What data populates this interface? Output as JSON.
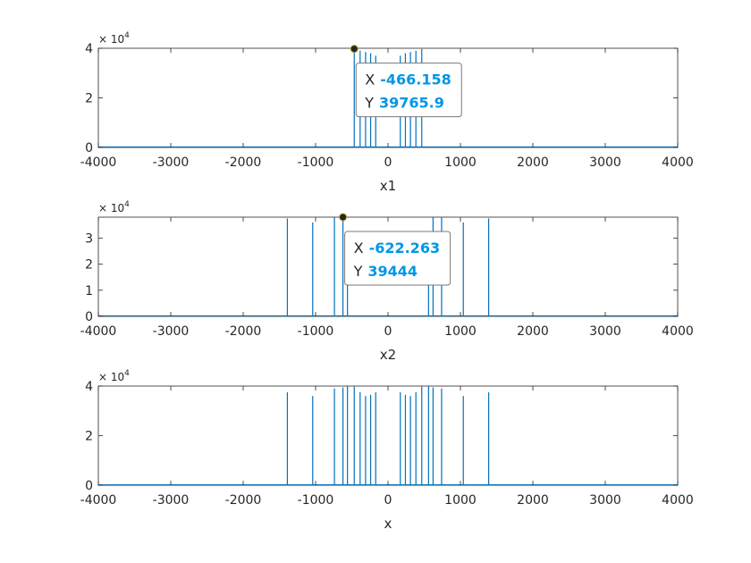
{
  "colors": {
    "series": "#0072bd",
    "axis": "#262626",
    "datatip_value": "#0096e6",
    "background": "#ffffff"
  },
  "chart_data": [
    {
      "type": "line",
      "xlabel": "x1",
      "ylabel": "",
      "xlim": [
        -4000,
        4000
      ],
      "ylim": [
        0,
        40000
      ],
      "y_exponent_label": "× 10",
      "y_exponent": "4",
      "xticks": [
        "-4000",
        "-3000",
        "-2000",
        "-1000",
        "0",
        "1000",
        "2000",
        "3000",
        "4000"
      ],
      "yticks": [
        {
          "value": 0,
          "label": "0"
        },
        {
          "value": 20000,
          "label": "2"
        },
        {
          "value": 40000,
          "label": "4"
        }
      ],
      "spikes": [
        {
          "x": -466.158,
          "y": 39765.9
        },
        {
          "x": -385,
          "y": 39000
        },
        {
          "x": -310,
          "y": 38500
        },
        {
          "x": -240,
          "y": 38000
        },
        {
          "x": -170,
          "y": 37000
        },
        {
          "x": 170,
          "y": 37000
        },
        {
          "x": 240,
          "y": 38000
        },
        {
          "x": 310,
          "y": 38500
        },
        {
          "x": 385,
          "y": 39000
        },
        {
          "x": 466,
          "y": 39700
        }
      ],
      "datatip": {
        "x_key": "X",
        "x_value": "-466.158",
        "y_key": "Y",
        "y_value": "39765.9"
      }
    },
    {
      "type": "line",
      "xlabel": "x2",
      "ylabel": "",
      "xlim": [
        -4000,
        4000
      ],
      "ylim": [
        0,
        38000
      ],
      "y_exponent_label": "× 10",
      "y_exponent": "4",
      "xticks": [
        "-4000",
        "-3000",
        "-2000",
        "-1000",
        "0",
        "1000",
        "2000",
        "3000",
        "4000"
      ],
      "yticks": [
        {
          "value": 0,
          "label": "0"
        },
        {
          "value": 10000,
          "label": "1"
        },
        {
          "value": 20000,
          "label": "2"
        },
        {
          "value": 30000,
          "label": "3"
        }
      ],
      "spikes": [
        {
          "x": -1390,
          "y": 37500
        },
        {
          "x": -1040,
          "y": 36000
        },
        {
          "x": -740,
          "y": 38500
        },
        {
          "x": -622.263,
          "y": 39444
        },
        {
          "x": -560,
          "y": 20000
        },
        {
          "x": 560,
          "y": 20000
        },
        {
          "x": 622,
          "y": 39400
        },
        {
          "x": 740,
          "y": 38500
        },
        {
          "x": 1040,
          "y": 36000
        },
        {
          "x": 1390,
          "y": 37500
        }
      ],
      "datatip": {
        "x_key": "X",
        "x_value": "-622.263",
        "y_key": "Y",
        "y_value": "39444"
      }
    },
    {
      "type": "line",
      "xlabel": "x",
      "ylabel": "",
      "xlim": [
        -4000,
        4000
      ],
      "ylim": [
        0,
        40000
      ],
      "y_exponent_label": "× 10",
      "y_exponent": "4",
      "xticks": [
        "-4000",
        "-3000",
        "-2000",
        "-1000",
        "0",
        "1000",
        "2000",
        "3000",
        "4000"
      ],
      "yticks": [
        {
          "value": 0,
          "label": "0"
        },
        {
          "value": 20000,
          "label": "2"
        },
        {
          "value": 40000,
          "label": "4"
        }
      ],
      "spikes": [
        {
          "x": -1390,
          "y": 37500
        },
        {
          "x": -1040,
          "y": 36000
        },
        {
          "x": -740,
          "y": 39000
        },
        {
          "x": -622,
          "y": 39444
        },
        {
          "x": -560,
          "y": 40000
        },
        {
          "x": -466,
          "y": 39766
        },
        {
          "x": -385,
          "y": 37500
        },
        {
          "x": -310,
          "y": 36000
        },
        {
          "x": -240,
          "y": 36500
        },
        {
          "x": -170,
          "y": 37500
        },
        {
          "x": 170,
          "y": 37500
        },
        {
          "x": 240,
          "y": 36500
        },
        {
          "x": 310,
          "y": 36000
        },
        {
          "x": 385,
          "y": 37500
        },
        {
          "x": 466,
          "y": 39766
        },
        {
          "x": 560,
          "y": 40000
        },
        {
          "x": 622,
          "y": 39444
        },
        {
          "x": 740,
          "y": 39000
        },
        {
          "x": 1040,
          "y": 36000
        },
        {
          "x": 1390,
          "y": 37500
        }
      ],
      "datatip": null
    }
  ]
}
